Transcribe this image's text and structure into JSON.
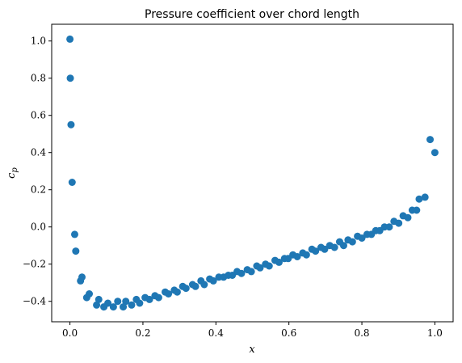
{
  "chart_data": {
    "type": "scatter",
    "title": "Pressure coefficient over chord length",
    "xlabel": "x",
    "ylabel_main": "c",
    "ylabel_sub": "p",
    "xlim": [
      -0.05,
      1.05
    ],
    "ylim": [
      -0.51,
      1.09
    ],
    "x_ticks": [
      0.0,
      0.2,
      0.4,
      0.6,
      0.8,
      1.0
    ],
    "x_tick_labels": [
      "0.0",
      "0.2",
      "0.4",
      "0.6",
      "0.8",
      "1.0"
    ],
    "y_ticks": [
      -0.4,
      -0.2,
      0.0,
      0.2,
      0.4,
      0.6,
      0.8,
      1.0
    ],
    "y_tick_labels": [
      "−0.4",
      "−0.2",
      "0.0",
      "0.2",
      "0.4",
      "0.6",
      "0.8",
      "1.0"
    ],
    "grid": false,
    "marker_color": "#1f77b4",
    "series": [
      {
        "x": [
          0.0,
          0.001,
          0.003,
          0.006,
          0.013,
          0.016,
          0.029,
          0.033,
          0.046,
          0.053,
          0.073,
          0.079,
          0.093,
          0.104,
          0.119,
          0.131,
          0.146,
          0.153,
          0.169,
          0.182,
          0.191,
          0.206,
          0.218,
          0.233,
          0.243,
          0.261,
          0.27,
          0.286,
          0.294,
          0.309,
          0.318,
          0.336,
          0.344,
          0.359,
          0.368,
          0.383,
          0.393,
          0.408,
          0.421,
          0.434,
          0.445,
          0.458,
          0.47,
          0.486,
          0.497,
          0.512,
          0.521,
          0.536,
          0.546,
          0.562,
          0.573,
          0.588,
          0.598,
          0.611,
          0.623,
          0.638,
          0.648,
          0.663,
          0.673,
          0.688,
          0.698,
          0.712,
          0.725,
          0.739,
          0.75,
          0.762,
          0.774,
          0.788,
          0.8,
          0.814,
          0.826,
          0.838,
          0.849,
          0.862,
          0.875,
          0.888,
          0.901,
          0.913,
          0.926,
          0.938,
          0.95,
          0.957,
          0.973,
          0.987,
          1.0
        ],
        "y": [
          1.01,
          0.8,
          0.55,
          0.24,
          -0.04,
          -0.13,
          -0.29,
          -0.27,
          -0.38,
          -0.36,
          -0.42,
          -0.39,
          -0.43,
          -0.41,
          -0.43,
          -0.4,
          -0.43,
          -0.4,
          -0.42,
          -0.39,
          -0.41,
          -0.38,
          -0.39,
          -0.37,
          -0.38,
          -0.35,
          -0.36,
          -0.34,
          -0.35,
          -0.32,
          -0.33,
          -0.31,
          -0.32,
          -0.29,
          -0.31,
          -0.28,
          -0.29,
          -0.27,
          -0.27,
          -0.26,
          -0.26,
          -0.24,
          -0.25,
          -0.23,
          -0.24,
          -0.21,
          -0.22,
          -0.2,
          -0.21,
          -0.18,
          -0.19,
          -0.17,
          -0.17,
          -0.15,
          -0.16,
          -0.14,
          -0.15,
          -0.12,
          -0.13,
          -0.11,
          -0.12,
          -0.1,
          -0.11,
          -0.08,
          -0.1,
          -0.07,
          -0.08,
          -0.05,
          -0.06,
          -0.04,
          -0.04,
          -0.02,
          -0.02,
          0.0,
          0.0,
          0.03,
          0.02,
          0.06,
          0.05,
          0.09,
          0.09,
          0.15,
          0.16,
          0.47,
          0.4
        ]
      }
    ]
  }
}
